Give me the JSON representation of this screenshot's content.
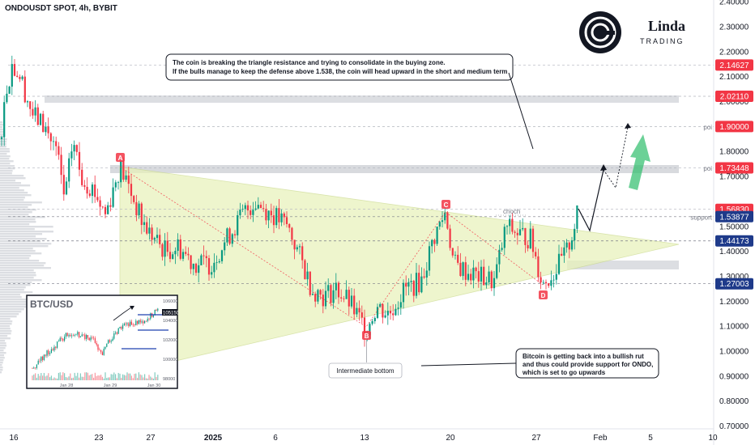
{
  "chart_data": {
    "type": "candlestick",
    "title": "ONDOUSDT SPOT, 4h, BYBIT",
    "ylim": [
      0.7,
      2.4
    ],
    "y_ticks": [
      "2.40000",
      "2.30000",
      "2.20000",
      "2.10000",
      "2.00000",
      "1.80000",
      "1.70000",
      "1.50000",
      "1.40000",
      "1.30000",
      "1.20000",
      "1.10000",
      "1.00000",
      "0.90000",
      "0.80000",
      "0.70000"
    ],
    "x_ticks": [
      {
        "label": "16",
        "bold": false
      },
      {
        "label": "23",
        "bold": false
      },
      {
        "label": "27",
        "bold": false
      },
      {
        "label": "2025",
        "bold": true
      },
      {
        "label": "6",
        "bold": false
      },
      {
        "label": "13",
        "bold": false
      },
      {
        "label": "20",
        "bold": false
      },
      {
        "label": "27",
        "bold": false
      },
      {
        "label": "Feb",
        "bold": false
      },
      {
        "label": "5",
        "bold": false
      },
      {
        "label": "10",
        "bold": false
      }
    ],
    "price_tags": [
      {
        "value": "2.14627",
        "color": "#f23645"
      },
      {
        "value": "2.02110",
        "color": "#f23645"
      },
      {
        "value": "1.90000",
        "color": "#f23645",
        "label": "poi"
      },
      {
        "value": "1.73448",
        "color": "#f23645",
        "label": "poi"
      },
      {
        "value": "1.56830",
        "color": "#f23645"
      },
      {
        "value": "1.53877",
        "color": "#1e3a8a",
        "label": "support"
      },
      {
        "value": "1.44173",
        "color": "#1e3a8a"
      },
      {
        "value": "1.27003",
        "color": "#1e3a8a"
      }
    ],
    "pattern_points": [
      {
        "label": "A",
        "price": 1.74
      },
      {
        "label": "B",
        "price": 1.09
      },
      {
        "label": "C",
        "price": 1.56
      },
      {
        "label": "D",
        "price": 1.27
      }
    ],
    "choch_label": "choch",
    "bottom_label": "Intermediate bottom",
    "annotations": [
      "The coin is breaking the triangle resistance and trying to consolidate in the buying zone.",
      "If the bulls manage to keep the defense above 1.538, the coin will head upward in the short and medium term"
    ],
    "btc_note": [
      "Bitcoin is getting back into a bullish rut",
      "and thus could provide support for ONDO,",
      "which is set to go upwards"
    ],
    "colors": {
      "up": "#089981",
      "down": "#f23645",
      "triangle": "#e8f2b8",
      "arrow": "#2ebd6b"
    }
  },
  "inset": {
    "title": "BTC/USD",
    "price_label": "105150",
    "y_ticks": [
      "106000",
      "104000",
      "102000",
      "100000",
      "98000"
    ],
    "x_ticks": [
      "Jan 28",
      "Jan 29",
      "Jan 30"
    ]
  },
  "logo": {
    "text_top": "Linda",
    "text_bottom": "TRADING"
  }
}
